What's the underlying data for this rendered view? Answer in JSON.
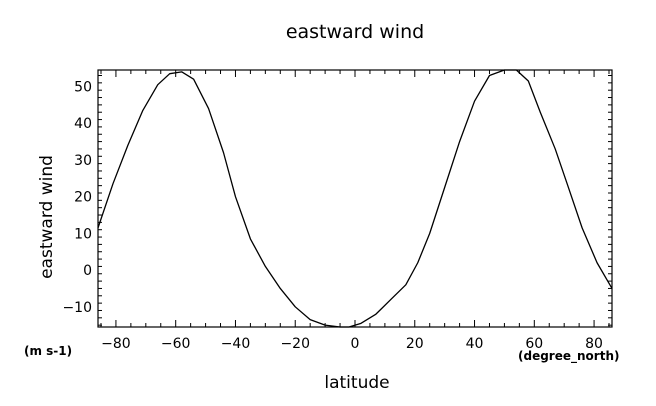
{
  "chart_data": {
    "type": "line",
    "title": "eastward wind",
    "xlabel": "latitude",
    "ylabel": "eastward wind",
    "x_units": "(degree_north)",
    "y_units": "(m s-1)",
    "xlim": [
      -86,
      86
    ],
    "ylim": [
      -15.5,
      54.5
    ],
    "x_ticks": [
      -80,
      -60,
      -40,
      -20,
      0,
      20,
      40,
      60,
      80
    ],
    "y_ticks": [
      -10,
      0,
      10,
      20,
      30,
      40,
      50
    ],
    "grid": false,
    "legend": "none",
    "series": [
      {
        "x": [
          -86,
          -81,
          -76,
          -71,
          -66,
          -62,
          -58,
          -54,
          -49,
          -44,
          -40,
          -35,
          -30,
          -25,
          -20,
          -15,
          -10,
          -5,
          -2,
          2,
          7,
          12,
          17,
          21,
          25,
          30,
          35,
          40,
          45,
          50,
          54,
          58,
          62,
          67,
          71,
          76,
          81,
          86
        ],
        "y": [
          11.5,
          23.5,
          34,
          43.5,
          50.5,
          53.5,
          54,
          52,
          44,
          32,
          20,
          8.5,
          1,
          -5,
          -10,
          -13.5,
          -15,
          -15.5,
          -15.5,
          -14.5,
          -12,
          -8,
          -4,
          2,
          10,
          22.5,
          35,
          46,
          53,
          54.5,
          54.5,
          51.5,
          43,
          33,
          23.5,
          11.5,
          2,
          -5
        ]
      }
    ]
  }
}
